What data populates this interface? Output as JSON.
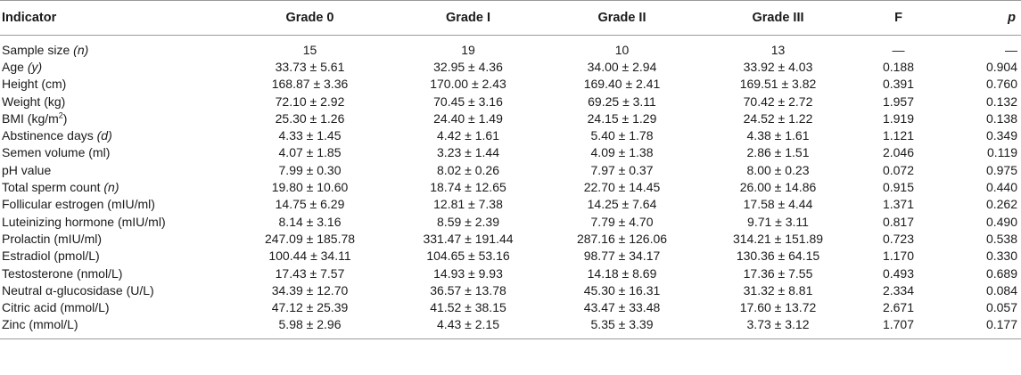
{
  "table": {
    "headers": [
      "Indicator",
      "Grade 0",
      "Grade I",
      "Grade II",
      "Grade III",
      "F",
      "p"
    ],
    "rows": [
      {
        "label": "Sample size",
        "unit_italic": "(n)",
        "cells": [
          "15",
          "19",
          "10",
          "13",
          "—",
          "—"
        ]
      },
      {
        "label": "Age",
        "unit_italic": "(y)",
        "cells": [
          "33.73 ± 5.61",
          "32.95 ± 4.36",
          "34.00 ± 2.94",
          "33.92 ± 4.03",
          "0.188",
          "0.904"
        ]
      },
      {
        "label": "Height (cm)",
        "cells": [
          "168.87 ± 3.36",
          "170.00 ± 2.43",
          "169.40 ± 2.41",
          "169.51 ± 3.82",
          "0.391",
          "0.760"
        ]
      },
      {
        "label": "Weight (kg)",
        "cells": [
          "72.10 ± 2.92",
          "70.45 ± 3.16",
          "69.25 ± 3.11",
          "70.42 ± 2.72",
          "1.957",
          "0.132"
        ]
      },
      {
        "label": "BMI (kg/m",
        "sup": "2",
        "label_suffix": ")",
        "cells": [
          "25.30 ± 1.26",
          "24.40 ± 1.49",
          "24.15 ± 1.29",
          "24.52 ± 1.22",
          "1.919",
          "0.138"
        ]
      },
      {
        "label": "Abstinence days",
        "unit_italic": "(d)",
        "cells": [
          "4.33 ± 1.45",
          "4.42 ± 1.61",
          "5.40 ± 1.78",
          "4.38 ± 1.61",
          "1.121",
          "0.349"
        ]
      },
      {
        "label": "Semen volume (ml)",
        "cells": [
          "4.07 ± 1.85",
          "3.23 ± 1.44",
          "4.09 ± 1.38",
          "2.86 ± 1.51",
          "2.046",
          "0.119"
        ]
      },
      {
        "label": "pH value",
        "cells": [
          "7.99 ± 0.30",
          "8.02 ± 0.26",
          "7.97 ± 0.37",
          "8.00 ± 0.23",
          "0.072",
          "0.975"
        ]
      },
      {
        "label": "Total sperm count",
        "unit_italic": "(n)",
        "cells": [
          "19.80 ± 10.60",
          "18.74 ± 12.65",
          "22.70 ± 14.45",
          "26.00 ± 14.86",
          "0.915",
          "0.440"
        ]
      },
      {
        "label": "Follicular estrogen (mIU/ml)",
        "cells": [
          "14.75 ± 6.29",
          "12.81 ± 7.38",
          "14.25 ± 7.64",
          "17.58 ± 4.44",
          "1.371",
          "0.262"
        ]
      },
      {
        "label": "Luteinizing hormone (mIU/ml)",
        "cells": [
          "8.14 ± 3.16",
          "8.59 ± 2.39",
          "7.79 ± 4.70",
          "9.71 ± 3.11",
          "0.817",
          "0.490"
        ]
      },
      {
        "label": "Prolactin (mIU/ml)",
        "cells": [
          "247.09 ± 185.78",
          "331.47 ± 191.44",
          "287.16 ± 126.06",
          "314.21 ± 151.89",
          "0.723",
          "0.538"
        ]
      },
      {
        "label": "Estradiol (pmol/L)",
        "cells": [
          "100.44 ± 34.11",
          "104.65 ± 53.16",
          "98.77 ± 34.17",
          "130.36 ± 64.15",
          "1.170",
          "0.330"
        ]
      },
      {
        "label": "Testosterone (nmol/L)",
        "cells": [
          "17.43 ± 7.57",
          "14.93 ± 9.93",
          "14.18 ± 8.69",
          "17.36 ± 7.55",
          "0.493",
          "0.689"
        ]
      },
      {
        "label": "Neutral α-glucosidase (U/L)",
        "cells": [
          "34.39 ± 12.70",
          "36.57 ± 13.78",
          "45.30 ± 16.31",
          "31.32 ± 8.81",
          "2.334",
          "0.084"
        ]
      },
      {
        "label": "Citric acid (mmol/L)",
        "cells": [
          "47.12 ± 25.39",
          "41.52 ± 38.15",
          "43.47 ± 33.48",
          "17.60 ± 13.72",
          "2.671",
          "0.057"
        ]
      },
      {
        "label": "Zinc (mmol/L)",
        "cells": [
          "5.98 ± 2.96",
          "4.43 ± 2.15",
          "5.35 ± 3.39",
          "3.73 ± 3.12",
          "1.707",
          "0.177"
        ]
      }
    ]
  }
}
